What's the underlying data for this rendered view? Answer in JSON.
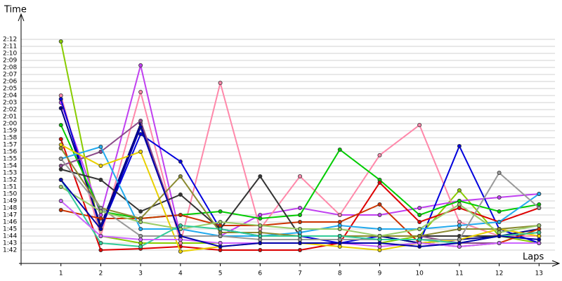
{
  "chart_data": {
    "type": "line",
    "x_label": "Laps",
    "y_label": "Time",
    "xlim": [
      0,
      13.4
    ],
    "xticks": [
      1,
      2,
      3,
      4,
      5,
      6,
      7,
      8,
      9,
      10,
      11,
      12,
      13
    ],
    "ylim": [
      100.1,
      134.6
    ],
    "yticks": [
      {
        "value": 102,
        "label": "1:42"
      },
      {
        "value": 103,
        "label": "1:43"
      },
      {
        "value": 104,
        "label": "1:44"
      },
      {
        "value": 105,
        "label": "1:45"
      },
      {
        "value": 106,
        "label": "1:46"
      },
      {
        "value": 107,
        "label": "1:47"
      },
      {
        "value": 108,
        "label": "1:48"
      },
      {
        "value": 109,
        "label": "1:49"
      },
      {
        "value": 110,
        "label": "1:50"
      },
      {
        "value": 111,
        "label": "1:51"
      },
      {
        "value": 112,
        "label": "1:52"
      },
      {
        "value": 113,
        "label": "1:53"
      },
      {
        "value": 114,
        "label": "1:54"
      },
      {
        "value": 115,
        "label": "1:55"
      },
      {
        "value": 116,
        "label": "1:56"
      },
      {
        "value": 117,
        "label": "1:57"
      },
      {
        "value": 118,
        "label": "1:58"
      },
      {
        "value": 119,
        "label": "1:59"
      },
      {
        "value": 120,
        "label": "2:00"
      },
      {
        "value": 121,
        "label": "2:01"
      },
      {
        "value": 122,
        "label": "2:02"
      },
      {
        "value": 123,
        "label": "2:03"
      },
      {
        "value": 124,
        "label": "2:04"
      },
      {
        "value": 125,
        "label": "2:05"
      },
      {
        "value": 126,
        "label": "2:06"
      },
      {
        "value": 127,
        "label": "2:07"
      },
      {
        "value": 128,
        "label": "2:08"
      },
      {
        "value": 129,
        "label": "2:09"
      },
      {
        "value": 130,
        "label": "2:10"
      },
      {
        "value": 131,
        "label": "2:11"
      },
      {
        "value": 132,
        "label": "2:12"
      }
    ],
    "grid": true,
    "x": [
      1,
      2,
      3,
      4,
      5,
      6,
      7,
      8,
      9,
      10,
      11,
      12,
      13
    ],
    "series": [
      {
        "color": "#88cc00",
        "values": [
          131.7,
          104,
          103,
          103,
          103,
          103,
          103,
          103,
          103,
          104,
          110.5,
          104,
          103
        ]
      },
      {
        "color": "#c040f0",
        "values": [
          123,
          107,
          128.3,
          104,
          104,
          107,
          108,
          107,
          107,
          108,
          109,
          109.5,
          110
        ]
      },
      {
        "color": "#ff88aa",
        "values": [
          124,
          104,
          124.5,
          103,
          125.8,
          105,
          112.5,
          107,
          115.5,
          119.8,
          106,
          104,
          104
        ]
      },
      {
        "color": "#0000dd",
        "values": [
          123.5,
          105,
          118.5,
          114.6,
          105,
          104,
          104,
          103,
          104,
          103,
          116.8,
          105,
          103
        ]
      },
      {
        "color": "#000080",
        "values": [
          122.2,
          105.5,
          120,
          104,
          104,
          104,
          104,
          104,
          104,
          103,
          103.5,
          104,
          105
        ]
      },
      {
        "color": "#00cc00",
        "values": [
          119.8,
          107.5,
          106.5,
          107,
          107.5,
          106.5,
          107,
          116.3,
          112,
          107,
          109,
          107.5,
          108.5
        ]
      },
      {
        "color": "#dd0000",
        "values": [
          117.8,
          102,
          102.2,
          102.5,
          102,
          102,
          102,
          103,
          111.6,
          106,
          108,
          106,
          108
        ]
      },
      {
        "color": "#cc3300",
        "values": [
          107.7,
          106.5,
          106.5,
          107,
          105.5,
          105.5,
          106,
          106,
          108.5,
          103,
          102.5,
          103,
          105
        ]
      },
      {
        "color": "#333333",
        "values": [
          113.5,
          112,
          107.5,
          109.9,
          105,
          112.5,
          104,
          104,
          104,
          104,
          104,
          104,
          104.5
        ]
      },
      {
        "color": "#8b4a8b",
        "values": [
          114,
          116,
          120.4,
          104,
          104,
          104,
          104,
          104,
          104,
          104,
          103,
          103,
          103
        ]
      },
      {
        "color": "#22aaee",
        "values": [
          115,
          116.7,
          105,
          105,
          104,
          104,
          104.5,
          105.5,
          105,
          105,
          105.5,
          106,
          110
        ]
      },
      {
        "color": "#e8d000",
        "values": [
          117,
          114,
          116,
          101.8,
          102.5,
          103,
          103,
          102.5,
          102,
          103,
          103.5,
          105,
          104
        ]
      },
      {
        "color": "#8a8a30",
        "values": [
          116.5,
          108,
          106.5,
          112.5,
          104.5,
          104.5,
          104,
          104,
          104,
          104,
          105,
          105,
          105.5
        ]
      },
      {
        "color": "#999999",
        "values": [
          115,
          108,
          104,
          104,
          104,
          103.5,
          103.5,
          103.5,
          103.5,
          103.5,
          103.5,
          113,
          108
        ]
      },
      {
        "color": "#99cc66",
        "values": [
          111,
          107.5,
          106,
          105,
          106,
          105.5,
          105,
          105,
          104,
          105,
          108.5,
          104.5,
          105.5
        ]
      },
      {
        "color": "#33cc99",
        "values": [
          112,
          103,
          102.5,
          105.5,
          105,
          104,
          104,
          104,
          103.5,
          103.5,
          103,
          104,
          104.5
        ]
      },
      {
        "color": "#cc66ff",
        "values": [
          109,
          104,
          103.5,
          103.5,
          103,
          103,
          103,
          103,
          102.5,
          103,
          102.5,
          103,
          103
        ]
      },
      {
        "color": "#0000aa",
        "values": [
          112,
          105,
          119.5,
          104,
          102.5,
          103,
          103,
          103,
          103,
          102.5,
          103,
          104,
          103.5
        ]
      }
    ]
  }
}
